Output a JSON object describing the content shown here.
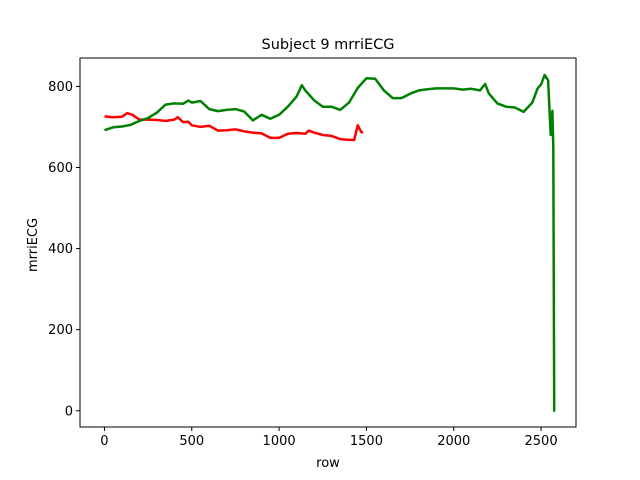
{
  "chart_data": {
    "type": "line",
    "title": "Subject 9 mrriECG",
    "xlabel": "row",
    "ylabel": "mrriECG",
    "xlim": [
      -140,
      2700
    ],
    "ylim": [
      -40,
      870
    ],
    "xticks": [
      0,
      500,
      1000,
      1500,
      2000,
      2500
    ],
    "yticks": [
      0,
      200,
      400,
      600,
      800
    ],
    "grid": false,
    "legend": "none",
    "series": [
      {
        "color": "#ff0000",
        "x": [
          0,
          50,
          100,
          130,
          160,
          200,
          250,
          300,
          350,
          400,
          420,
          450,
          480,
          500,
          550,
          600,
          650,
          700,
          750,
          800,
          850,
          900,
          950,
          1000,
          1050,
          1100,
          1150,
          1170,
          1200,
          1250,
          1300,
          1350,
          1400,
          1430,
          1450,
          1470,
          1480
        ],
        "y": [
          726,
          724,
          725,
          734,
          730,
          718,
          718,
          717,
          715,
          718,
          724,
          712,
          713,
          704,
          700,
          703,
          691,
          692,
          694,
          689,
          686,
          684,
          673,
          673,
          683,
          685,
          683,
          691,
          686,
          680,
          678,
          670,
          668,
          668,
          704,
          688,
          685
        ]
      },
      {
        "color": "#008000",
        "x": [
          0,
          50,
          100,
          150,
          200,
          250,
          300,
          350,
          400,
          450,
          480,
          500,
          550,
          600,
          650,
          700,
          750,
          800,
          850,
          900,
          950,
          1000,
          1050,
          1100,
          1130,
          1150,
          1200,
          1250,
          1300,
          1350,
          1400,
          1450,
          1500,
          1550,
          1600,
          1650,
          1700,
          1750,
          1800,
          1850,
          1900,
          1950,
          2000,
          2050,
          2100,
          2150,
          2180,
          2200,
          2250,
          2300,
          2350,
          2400,
          2450,
          2480,
          2500,
          2520,
          2540,
          2555,
          2565,
          2570,
          2575,
          2580
        ],
        "y": [
          692,
          699,
          701,
          705,
          715,
          722,
          735,
          755,
          758,
          757,
          765,
          760,
          764,
          744,
          739,
          742,
          744,
          738,
          716,
          730,
          720,
          730,
          750,
          775,
          803,
          790,
          766,
          750,
          750,
          742,
          760,
          796,
          820,
          819,
          790,
          771,
          771,
          782,
          790,
          793,
          795,
          795,
          795,
          792,
          794,
          790,
          806,
          783,
          758,
          750,
          748,
          737,
          760,
          795,
          805,
          828,
          815,
          680,
          740,
          650,
          0,
          0
        ]
      }
    ]
  }
}
